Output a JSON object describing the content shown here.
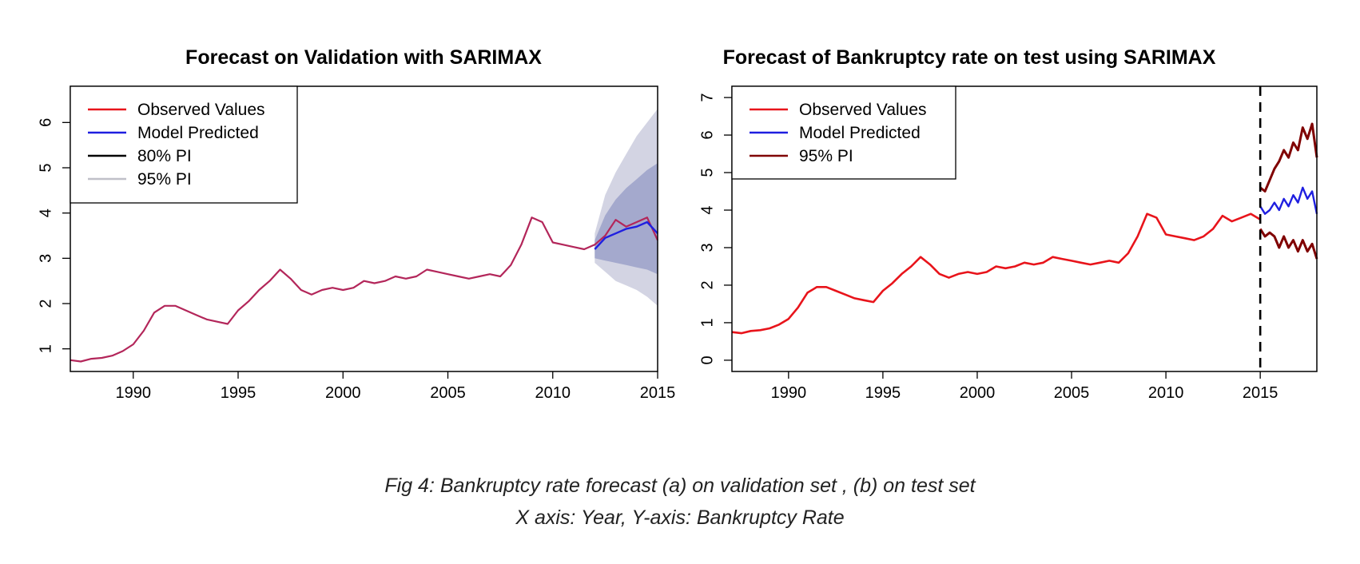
{
  "caption": {
    "line1": "Fig 4:  Bankruptcy rate forecast (a) on validation set , (b) on test set",
    "line2": "X axis: Year, Y-axis: Bankruptcy Rate"
  },
  "colors": {
    "observed": "#e8141b",
    "predicted": "#1f1fe0",
    "pi80": "#000000",
    "pi95": "#c0c0c8",
    "pi95_dark": "#800000",
    "overlap": "#b3265a",
    "band80_fill": "#a4a9cd",
    "band95_fill": "#d3d4e3"
  },
  "chart_data": [
    {
      "type": "line",
      "title": "Forecast on Validation with SARIMAX",
      "xlabel": "",
      "ylabel": "",
      "xlim": [
        1987,
        2015
      ],
      "ylim": [
        0.5,
        6.8
      ],
      "xticks": [
        "1990",
        "1995",
        "2000",
        "2005",
        "2010",
        "2015"
      ],
      "yticks": [
        "1",
        "2",
        "3",
        "4",
        "5",
        "6"
      ],
      "legend": {
        "placement": "top-left",
        "entries": [
          "Observed Values",
          "Model Predicted",
          "80% PI",
          "95% PI"
        ]
      },
      "observed": {
        "x": [
          1987.0,
          1987.5,
          1988.0,
          1988.5,
          1989.0,
          1989.5,
          1990.0,
          1990.5,
          1991.0,
          1991.5,
          1992.0,
          1992.5,
          1993.0,
          1993.5,
          1994.0,
          1994.5,
          1995.0,
          1995.5,
          1996.0,
          1996.5,
          1997.0,
          1997.5,
          1998.0,
          1998.5,
          1999.0,
          1999.5,
          2000.0,
          2000.5,
          2001.0,
          2001.5,
          2002.0,
          2002.5,
          2003.0,
          2003.5,
          2004.0,
          2004.5,
          2005.0,
          2005.5,
          2006.0,
          2006.5,
          2007.0,
          2007.5,
          2008.0,
          2008.5,
          2009.0,
          2009.5,
          2010.0,
          2010.5,
          2011.0,
          2011.5,
          2012.0,
          2012.5,
          2013.0,
          2013.5,
          2014.0,
          2014.5,
          2015.0
        ],
        "y": [
          0.75,
          0.72,
          0.78,
          0.8,
          0.85,
          0.95,
          1.1,
          1.4,
          1.8,
          1.95,
          1.95,
          1.85,
          1.75,
          1.65,
          1.6,
          1.55,
          1.85,
          2.05,
          2.3,
          2.5,
          2.75,
          2.55,
          2.3,
          2.2,
          2.3,
          2.35,
          2.3,
          2.35,
          2.5,
          2.45,
          2.5,
          2.6,
          2.55,
          2.6,
          2.75,
          2.7,
          2.65,
          2.6,
          2.55,
          2.6,
          2.65,
          2.6,
          2.85,
          3.3,
          3.9,
          3.8,
          3.35,
          3.3,
          3.25,
          3.2,
          3.3,
          3.5,
          3.85,
          3.7,
          3.8,
          3.9,
          3.4
        ]
      },
      "predicted": {
        "x": [
          2012.0,
          2012.5,
          2013.0,
          2013.5,
          2014.0,
          2014.5,
          2015.0
        ],
        "y": [
          3.2,
          3.45,
          3.55,
          3.65,
          3.7,
          3.8,
          3.55
        ]
      },
      "pi80": {
        "x": [
          2012.0,
          2012.5,
          2013.0,
          2013.5,
          2014.0,
          2014.5,
          2015.0
        ],
        "lower": [
          3.0,
          2.95,
          2.9,
          2.85,
          2.8,
          2.75,
          2.65
        ],
        "upper": [
          3.4,
          3.95,
          4.3,
          4.55,
          4.75,
          4.95,
          5.1
        ]
      },
      "pi95": {
        "x": [
          2012.0,
          2012.5,
          2013.0,
          2013.5,
          2014.0,
          2014.5,
          2015.0
        ],
        "lower": [
          2.9,
          2.7,
          2.5,
          2.4,
          2.3,
          2.15,
          1.95
        ],
        "upper": [
          3.55,
          4.4,
          4.9,
          5.3,
          5.7,
          6.0,
          6.3
        ]
      }
    },
    {
      "type": "line",
      "title": "Forecast of Bankruptcy rate on test using SARIMAX",
      "xlabel": "",
      "ylabel": "",
      "xlim": [
        1987,
        2018
      ],
      "ylim": [
        -0.3,
        7.3
      ],
      "xticks": [
        "1990",
        "1995",
        "2000",
        "2005",
        "2010",
        "2015"
      ],
      "yticks": [
        "0",
        "1",
        "2",
        "3",
        "4",
        "5",
        "6",
        "7"
      ],
      "vline_x": 2015,
      "legend": {
        "placement": "top-left",
        "entries": [
          "Observed Values",
          "Model Predicted",
          "95% PI"
        ]
      },
      "observed": {
        "x": [
          1987.0,
          1987.5,
          1988.0,
          1988.5,
          1989.0,
          1989.5,
          1990.0,
          1990.5,
          1991.0,
          1991.5,
          1992.0,
          1992.5,
          1993.0,
          1993.5,
          1994.0,
          1994.5,
          1995.0,
          1995.5,
          1996.0,
          1996.5,
          1997.0,
          1997.5,
          1998.0,
          1998.5,
          1999.0,
          1999.5,
          2000.0,
          2000.5,
          2001.0,
          2001.5,
          2002.0,
          2002.5,
          2003.0,
          2003.5,
          2004.0,
          2004.5,
          2005.0,
          2005.5,
          2006.0,
          2006.5,
          2007.0,
          2007.5,
          2008.0,
          2008.5,
          2009.0,
          2009.5,
          2010.0,
          2010.5,
          2011.0,
          2011.5,
          2012.0,
          2012.5,
          2013.0,
          2013.5,
          2014.0,
          2014.5,
          2015.0
        ],
        "y": [
          0.75,
          0.72,
          0.78,
          0.8,
          0.85,
          0.95,
          1.1,
          1.4,
          1.8,
          1.95,
          1.95,
          1.85,
          1.75,
          1.65,
          1.6,
          1.55,
          1.85,
          2.05,
          2.3,
          2.5,
          2.75,
          2.55,
          2.3,
          2.2,
          2.3,
          2.35,
          2.3,
          2.35,
          2.5,
          2.45,
          2.5,
          2.6,
          2.55,
          2.6,
          2.75,
          2.7,
          2.65,
          2.6,
          2.55,
          2.6,
          2.65,
          2.6,
          2.85,
          3.3,
          3.9,
          3.8,
          3.35,
          3.3,
          3.25,
          3.2,
          3.3,
          3.5,
          3.85,
          3.7,
          3.8,
          3.9,
          3.75
        ]
      },
      "predicted": {
        "x": [
          2015.0,
          2015.25,
          2015.5,
          2015.75,
          2016.0,
          2016.25,
          2016.5,
          2016.75,
          2017.0,
          2017.25,
          2017.5,
          2017.75,
          2018.0
        ],
        "y": [
          4.1,
          3.9,
          4.0,
          4.2,
          4.0,
          4.3,
          4.1,
          4.4,
          4.2,
          4.6,
          4.3,
          4.5,
          3.9
        ]
      },
      "pi95": {
        "x": [
          2015.0,
          2015.25,
          2015.5,
          2015.75,
          2016.0,
          2016.25,
          2016.5,
          2016.75,
          2017.0,
          2017.25,
          2017.5,
          2017.75,
          2018.0
        ],
        "lower": [
          3.5,
          3.3,
          3.4,
          3.3,
          3.0,
          3.3,
          3.0,
          3.2,
          2.9,
          3.2,
          2.9,
          3.1,
          2.7
        ],
        "upper": [
          4.6,
          4.5,
          4.8,
          5.1,
          5.3,
          5.6,
          5.4,
          5.8,
          5.6,
          6.2,
          5.9,
          6.3,
          5.4
        ]
      }
    }
  ]
}
